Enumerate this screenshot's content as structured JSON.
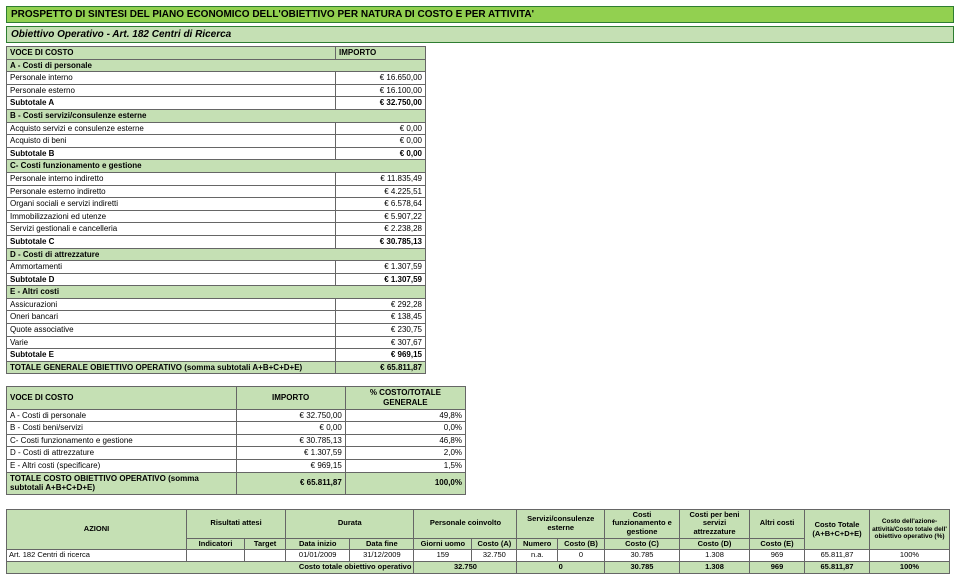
{
  "title": "PROSPETTO DI SINTESI DEL PIANO ECONOMICO DELL'OBIETTIVO PER NATURA DI COSTO E PER ATTIVITA'",
  "subtitle": "Obiettivo Operativo - Art. 182 Centri di Ricerca",
  "t1": {
    "h1": "VOCE DI COSTO",
    "h2": "IMPORTO",
    "rows": [
      {
        "k": "section",
        "l": "A - Costi di personale",
        "v": ""
      },
      {
        "k": "row",
        "l": "Personale interno",
        "v": "€ 16.650,00"
      },
      {
        "k": "row",
        "l": "Personale esterno",
        "v": "€ 16.100,00"
      },
      {
        "k": "sub",
        "l": "Subtotale A",
        "v": "€ 32.750,00"
      },
      {
        "k": "section",
        "l": "B - Costi servizi/consulenze esterne",
        "v": ""
      },
      {
        "k": "row",
        "l": "Acquisto servizi e consulenze esterne",
        "v": "€ 0,00"
      },
      {
        "k": "row",
        "l": "Acquisto di beni",
        "v": "€ 0,00"
      },
      {
        "k": "sub",
        "l": "Subtotale B",
        "v": "€ 0,00"
      },
      {
        "k": "section",
        "l": "C- Costi funzionamento e gestione",
        "v": ""
      },
      {
        "k": "row",
        "l": "Personale interno indiretto",
        "v": "€ 11.835,49"
      },
      {
        "k": "row",
        "l": "Personale esterno indiretto",
        "v": "€ 4.225,51"
      },
      {
        "k": "row",
        "l": "Organi sociali e servizi indiretti",
        "v": "€ 6.578,64"
      },
      {
        "k": "row",
        "l": "Immobilizzazioni ed utenze",
        "v": "€ 5.907,22"
      },
      {
        "k": "row",
        "l": "Servizi gestionali e cancelleria",
        "v": "€ 2.238,28"
      },
      {
        "k": "sub",
        "l": "Subtotale C",
        "v": "€ 30.785,13"
      },
      {
        "k": "section",
        "l": "D - Costi di attrezzature",
        "v": ""
      },
      {
        "k": "row",
        "l": "Ammortamenti",
        "v": "€ 1.307,59"
      },
      {
        "k": "sub",
        "l": "Subtotale D",
        "v": "€ 1.307,59"
      },
      {
        "k": "section",
        "l": "E - Altri costi",
        "v": ""
      },
      {
        "k": "row",
        "l": "Assicurazioni",
        "v": "€ 292,28"
      },
      {
        "k": "row",
        "l": "Oneri bancari",
        "v": "€ 138,45"
      },
      {
        "k": "row",
        "l": "Quote associative",
        "v": "€ 230,75"
      },
      {
        "k": "row",
        "l": "Varie",
        "v": "€ 307,67"
      },
      {
        "k": "sub",
        "l": "Subtotale E",
        "v": "€ 969,15"
      }
    ],
    "total_l": "TOTALE GENERALE OBIETTIVO OPERATIVO (somma subtotali A+B+C+D+E)",
    "total_v": "€ 65.811,87"
  },
  "t2": {
    "h1": "VOCE DI COSTO",
    "h2": "IMPORTO",
    "h3": "% COSTO/TOTALE GENERALE",
    "rows": [
      {
        "l": "A - Costi di personale",
        "v": "€ 32.750,00",
        "p": "49,8%"
      },
      {
        "l": "B - Costi beni/servizi",
        "v": "€ 0,00",
        "p": "0,0%"
      },
      {
        "l": "C- Costi funzionamento e gestione",
        "v": "€ 30.785,13",
        "p": "46,8%"
      },
      {
        "l": "D - Costi di attrezzature",
        "v": "€ 1.307,59",
        "p": "2,0%"
      },
      {
        "l": "E - Altri costi (specificare)",
        "v": "€ 969,15",
        "p": "1,5%"
      }
    ],
    "total_l": "TOTALE COSTO OBIETTIVO OPERATIVO (somma subtotali A+B+C+D+E)",
    "total_v": "€ 65.811,87",
    "total_p": "100,0%"
  },
  "t3": {
    "h": {
      "azioni": "AZIONI",
      "ris": "Risultati attesi",
      "dur": "Durata",
      "pers": "Personale coinvolto",
      "serv": "Servizi/consulenze esterne",
      "cfun": "Costi funzionamento e gestione",
      "cben": "Costi per beni servizi attrezzature",
      "altri": "Altri costi",
      "ctot": "Costo Totale (A+B+C+D+E)",
      "perc": "Costo dell'azione-attività/Costo totale dell' obiettivo operativo (%)"
    },
    "sub": {
      "ind": "Indicatori",
      "tgt": "Target",
      "di": "Data inizio",
      "df": "Data fine",
      "gu": "Giorni uomo",
      "ca": "Costo (A)",
      "num": "Numero",
      "cb": "Costo (B)",
      "cc": "Costo (C)",
      "cd": "Costo (D)",
      "ce": "Costo (E)"
    },
    "row": {
      "l": "Art. 182 Centri di ricerca",
      "ind": "",
      "tgt": "",
      "di": "01/01/2009",
      "df": "31/12/2009",
      "gu": "159",
      "ca": "32.750",
      "num": "n.a.",
      "cb": "0",
      "cc": "30.785",
      "cd": "1.308",
      "ce": "969",
      "ctot": "65.811,87",
      "perc": "100%"
    },
    "tot": {
      "l": "Costo totale obiettivo operativo",
      "ca": "32.750",
      "cb": "0",
      "cc": "30.785",
      "cd": "1.308",
      "ce": "969",
      "ctot": "65.811,87",
      "perc": "100%"
    }
  }
}
